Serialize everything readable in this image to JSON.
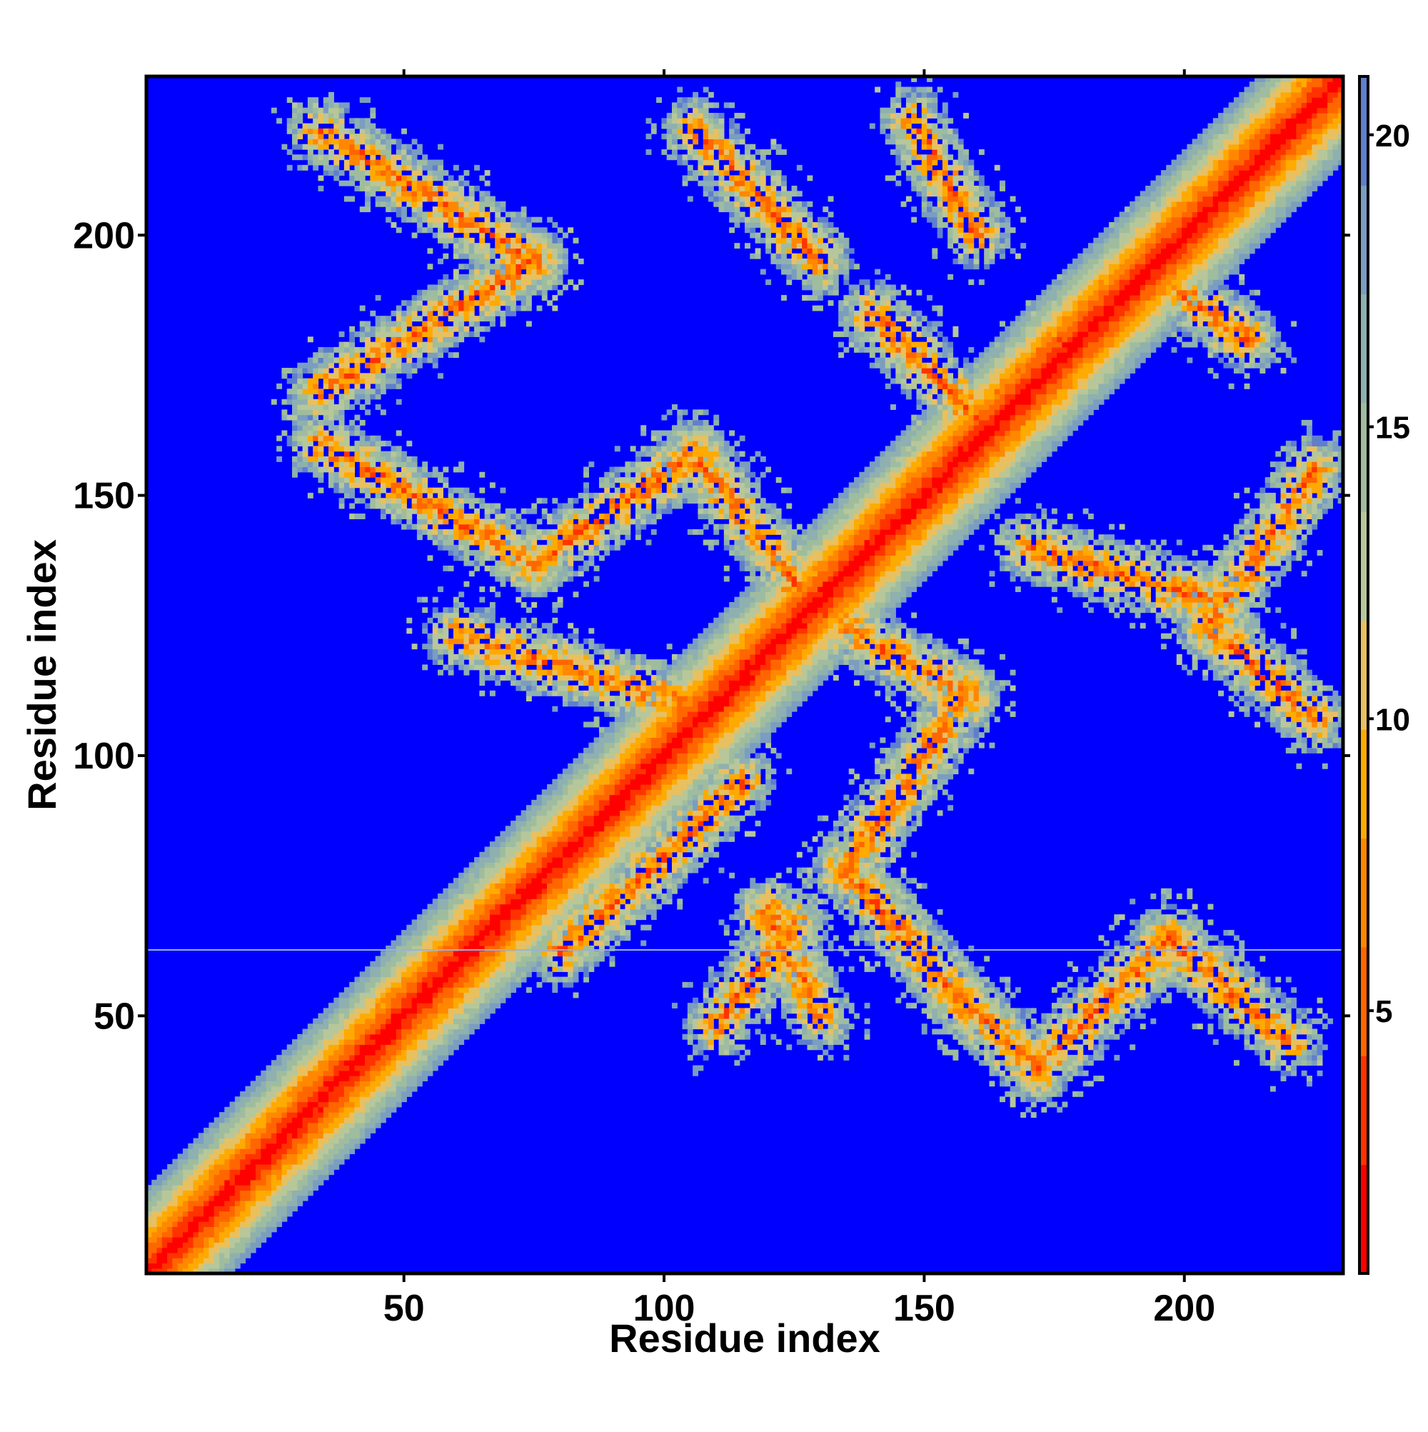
{
  "chart_data": {
    "type": "heatmap",
    "title": "",
    "xlabel": "Residue index",
    "ylabel": "Residue index",
    "n_residues": 230,
    "xlim": [
      0.5,
      230.5
    ],
    "ylim": [
      0.5,
      230.5
    ],
    "xticks": [
      50,
      100,
      150,
      200
    ],
    "yticks": [
      50,
      100,
      150,
      200
    ],
    "colorbar": {
      "min": 0.5,
      "max": 21,
      "ticks": [
        5,
        10,
        15,
        20
      ],
      "colors": [
        "#ff0000",
        "#ff3300",
        "#ff6600",
        "#ff8800",
        "#ffaa00",
        "#e8c060",
        "#b7c79a",
        "#9fbd9e",
        "#8fb0b0",
        "#7a9dc0",
        "#5f7fcc"
      ],
      "background_color": "#0000ff"
    },
    "cutoff_value": 21,
    "contact_bands": [
      {
        "x1": 34,
        "y1": 220,
        "x2": 75,
        "y2": 195
      },
      {
        "x1": 75,
        "y1": 195,
        "x2": 34,
        "y2": 170
      },
      {
        "x1": 34,
        "y1": 160,
        "x2": 75,
        "y2": 137
      },
      {
        "x1": 75,
        "y1": 137,
        "x2": 106,
        "y2": 158
      },
      {
        "x1": 106,
        "y1": 158,
        "x2": 130,
        "y2": 127
      },
      {
        "x1": 106,
        "y1": 220,
        "x2": 130,
        "y2": 195
      },
      {
        "x1": 130,
        "y1": 127,
        "x2": 158,
        "y2": 112
      },
      {
        "x1": 158,
        "y1": 112,
        "x2": 135,
        "y2": 78
      },
      {
        "x1": 135,
        "y1": 78,
        "x2": 158,
        "y2": 52
      },
      {
        "x1": 158,
        "y1": 52,
        "x2": 172,
        "y2": 40
      },
      {
        "x1": 172,
        "y1": 40,
        "x2": 197,
        "y2": 65
      },
      {
        "x1": 197,
        "y1": 65,
        "x2": 220,
        "y2": 45
      },
      {
        "x1": 120,
        "y1": 70,
        "x2": 130,
        "y2": 50
      },
      {
        "x1": 110,
        "y1": 48,
        "x2": 125,
        "y2": 68
      },
      {
        "x1": 80,
        "y1": 62,
        "x2": 115,
        "y2": 95
      },
      {
        "x1": 105,
        "y1": 110,
        "x2": 60,
        "y2": 123
      },
      {
        "x1": 165,
        "y1": 170,
        "x2": 198,
        "y2": 200
      },
      {
        "x1": 160,
        "y1": 165,
        "x2": 140,
        "y2": 185
      },
      {
        "x1": 205,
        "y1": 125,
        "x2": 225,
        "y2": 107
      },
      {
        "x1": 205,
        "y1": 125,
        "x2": 225,
        "y2": 155
      },
      {
        "x1": 148,
        "y1": 222,
        "x2": 160,
        "y2": 200
      },
      {
        "x1": 198,
        "y1": 190,
        "x2": 212,
        "y2": 180
      },
      {
        "x1": 170,
        "y1": 140,
        "x2": 205,
        "y2": 130
      }
    ]
  }
}
